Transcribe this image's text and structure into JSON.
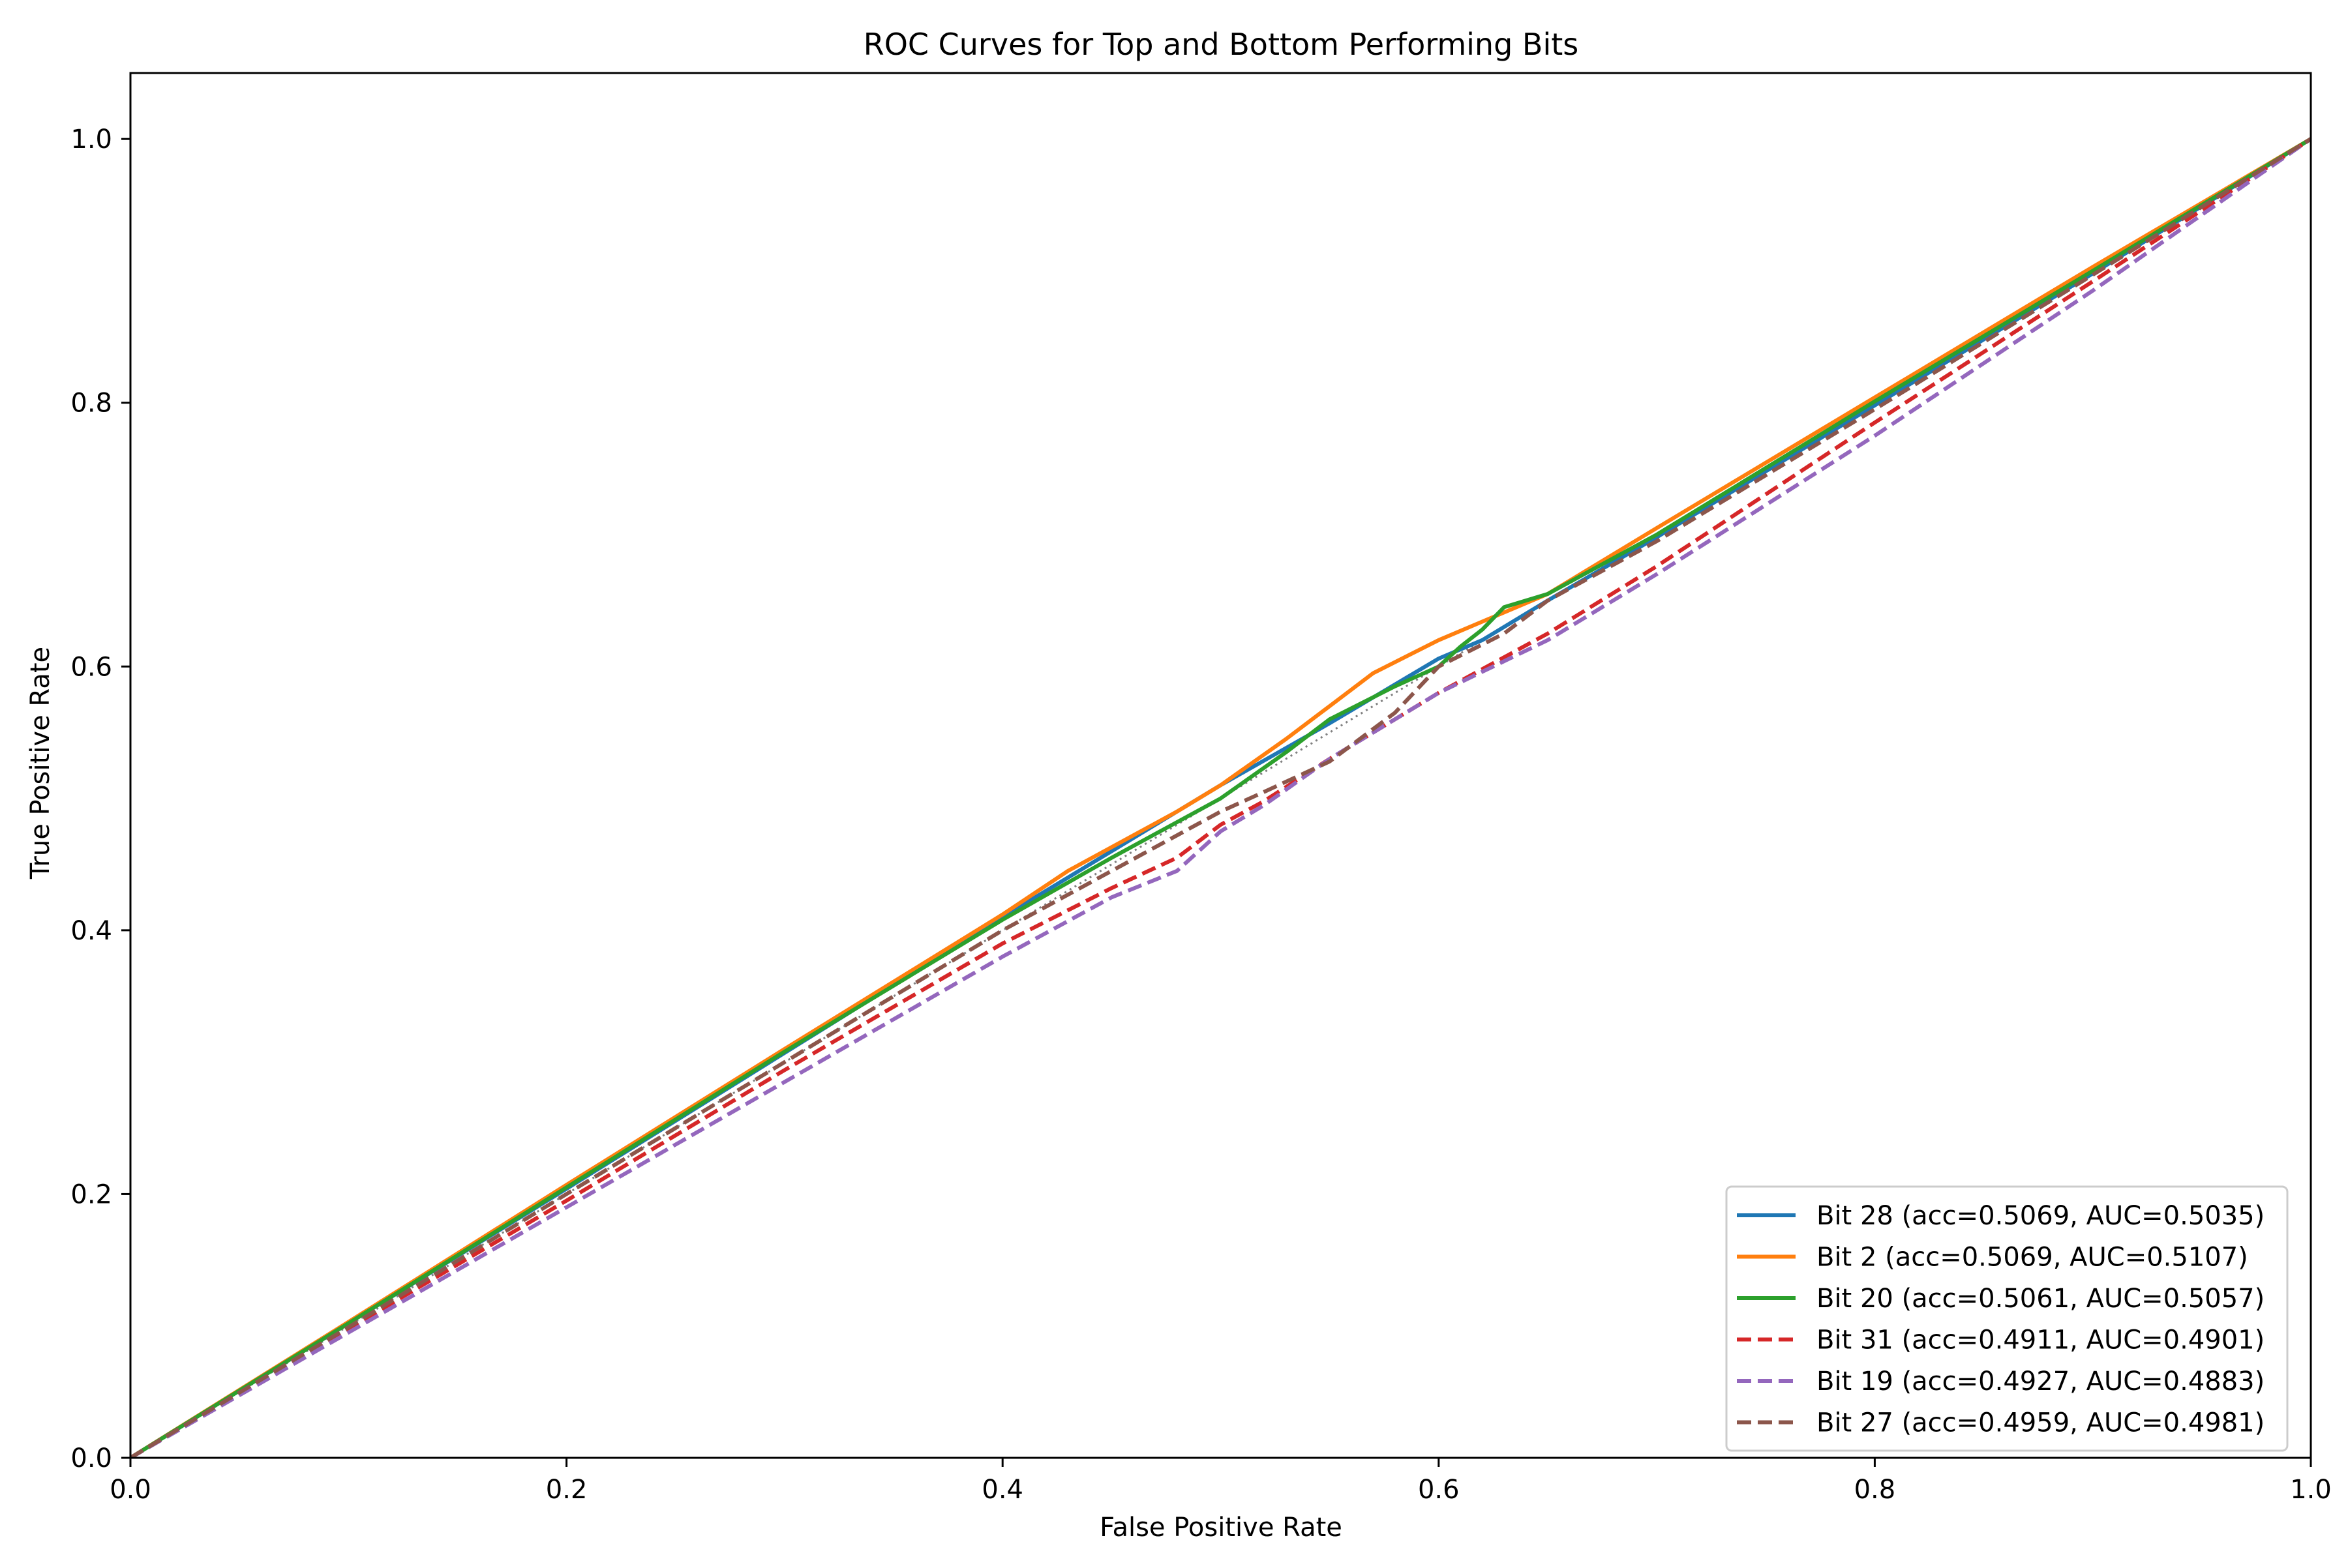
{
  "chart_data": {
    "type": "line",
    "title": "ROC Curves for Top and Bottom Performing Bits",
    "xlabel": "False Positive Rate",
    "ylabel": "True Positive Rate",
    "xlim": [
      0.0,
      1.0
    ],
    "ylim": [
      0.0,
      1.05
    ],
    "xticks": [
      "0.0",
      "0.2",
      "0.4",
      "0.6",
      "0.8",
      "1.0"
    ],
    "yticks": [
      "0.0",
      "0.2",
      "0.4",
      "0.6",
      "0.8",
      "1.0"
    ],
    "grid": false,
    "legend_position": "lower right",
    "chance_line": {
      "style": "dotted",
      "color": "#808080",
      "points": [
        [
          0.0,
          0.0
        ],
        [
          1.0,
          1.0
        ]
      ]
    },
    "series": [
      {
        "name": "Bit 28 (acc=0.5069, AUC=0.5035)",
        "color": "#1f77b4",
        "style": "solid",
        "points": [
          [
            0.0,
            0.0
          ],
          [
            0.1,
            0.102
          ],
          [
            0.2,
            0.204
          ],
          [
            0.3,
            0.307
          ],
          [
            0.4,
            0.41
          ],
          [
            0.45,
            0.46
          ],
          [
            0.5,
            0.51
          ],
          [
            0.55,
            0.557
          ],
          [
            0.6,
            0.606
          ],
          [
            0.62,
            0.62
          ],
          [
            0.65,
            0.65
          ],
          [
            0.7,
            0.698
          ],
          [
            0.8,
            0.798
          ],
          [
            0.9,
            0.898
          ],
          [
            1.0,
            1.0
          ]
        ]
      },
      {
        "name": "Bit 2 (acc=0.5069, AUC=0.5107)",
        "color": "#ff7f0e",
        "style": "solid",
        "points": [
          [
            0.0,
            0.0
          ],
          [
            0.1,
            0.103
          ],
          [
            0.2,
            0.207
          ],
          [
            0.3,
            0.31
          ],
          [
            0.4,
            0.412
          ],
          [
            0.43,
            0.445
          ],
          [
            0.48,
            0.49
          ],
          [
            0.5,
            0.51
          ],
          [
            0.53,
            0.545
          ],
          [
            0.55,
            0.57
          ],
          [
            0.57,
            0.595
          ],
          [
            0.6,
            0.62
          ],
          [
            0.65,
            0.655
          ],
          [
            0.7,
            0.705
          ],
          [
            0.8,
            0.804
          ],
          [
            0.9,
            0.903
          ],
          [
            1.0,
            1.0
          ]
        ]
      },
      {
        "name": "Bit 20 (acc=0.5061, AUC=0.5057)",
        "color": "#2ca02c",
        "style": "solid",
        "points": [
          [
            0.0,
            0.0
          ],
          [
            0.1,
            0.102
          ],
          [
            0.2,
            0.205
          ],
          [
            0.3,
            0.308
          ],
          [
            0.4,
            0.408
          ],
          [
            0.45,
            0.455
          ],
          [
            0.5,
            0.5
          ],
          [
            0.53,
            0.535
          ],
          [
            0.55,
            0.56
          ],
          [
            0.58,
            0.585
          ],
          [
            0.6,
            0.6
          ],
          [
            0.61,
            0.615
          ],
          [
            0.62,
            0.628
          ],
          [
            0.63,
            0.645
          ],
          [
            0.65,
            0.655
          ],
          [
            0.7,
            0.7
          ],
          [
            0.8,
            0.801
          ],
          [
            0.9,
            0.9
          ],
          [
            1.0,
            1.0
          ]
        ]
      },
      {
        "name": "Bit 31 (acc=0.4911, AUC=0.4901)",
        "color": "#d62728",
        "style": "dashed",
        "points": [
          [
            0.0,
            0.0
          ],
          [
            0.1,
            0.098
          ],
          [
            0.2,
            0.195
          ],
          [
            0.3,
            0.294
          ],
          [
            0.4,
            0.39
          ],
          [
            0.45,
            0.432
          ],
          [
            0.48,
            0.455
          ],
          [
            0.5,
            0.48
          ],
          [
            0.52,
            0.498
          ],
          [
            0.55,
            0.53
          ],
          [
            0.58,
            0.56
          ],
          [
            0.6,
            0.58
          ],
          [
            0.65,
            0.625
          ],
          [
            0.7,
            0.676
          ],
          [
            0.8,
            0.785
          ],
          [
            0.9,
            0.892
          ],
          [
            1.0,
            1.0
          ]
        ]
      },
      {
        "name": "Bit 19 (acc=0.4927, AUC=0.4883)",
        "color": "#9467bd",
        "style": "dashed",
        "points": [
          [
            0.0,
            0.0
          ],
          [
            0.1,
            0.095
          ],
          [
            0.2,
            0.19
          ],
          [
            0.3,
            0.285
          ],
          [
            0.4,
            0.38
          ],
          [
            0.45,
            0.425
          ],
          [
            0.48,
            0.445
          ],
          [
            0.5,
            0.475
          ],
          [
            0.52,
            0.495
          ],
          [
            0.55,
            0.53
          ],
          [
            0.58,
            0.56
          ],
          [
            0.6,
            0.58
          ],
          [
            0.65,
            0.62
          ],
          [
            0.7,
            0.67
          ],
          [
            0.8,
            0.775
          ],
          [
            0.9,
            0.885
          ],
          [
            1.0,
            1.0
          ]
        ]
      },
      {
        "name": "Bit 27 (acc=0.4959, AUC=0.4981)",
        "color": "#8c564b",
        "style": "dashed",
        "points": [
          [
            0.0,
            0.0
          ],
          [
            0.1,
            0.099
          ],
          [
            0.2,
            0.2
          ],
          [
            0.3,
            0.3
          ],
          [
            0.4,
            0.4
          ],
          [
            0.45,
            0.445
          ],
          [
            0.5,
            0.49
          ],
          [
            0.52,
            0.505
          ],
          [
            0.55,
            0.528
          ],
          [
            0.58,
            0.565
          ],
          [
            0.6,
            0.6
          ],
          [
            0.63,
            0.625
          ],
          [
            0.65,
            0.65
          ],
          [
            0.7,
            0.695
          ],
          [
            0.8,
            0.795
          ],
          [
            0.9,
            0.897
          ],
          [
            1.0,
            1.0
          ]
        ]
      }
    ]
  }
}
